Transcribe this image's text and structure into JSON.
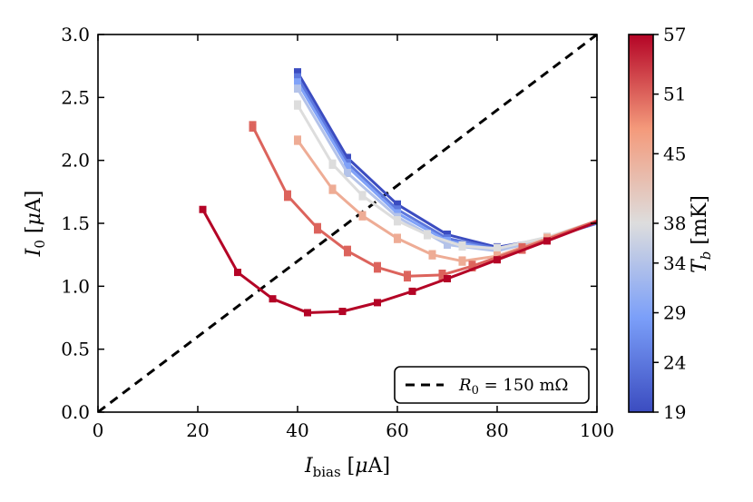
{
  "chart_data": {
    "type": "line",
    "xlabel": "I_bias [μA]",
    "ylabel": "I_0 [μA]",
    "xlim": [
      0,
      100
    ],
    "ylim": [
      0,
      3.0
    ],
    "xticks": [
      "0",
      "20",
      "40",
      "60",
      "80",
      "100"
    ],
    "yticks": [
      "0.0",
      "0.5",
      "1.0",
      "1.5",
      "2.0",
      "2.5",
      "3.0"
    ],
    "grid": false,
    "colorbar": {
      "label": "T_b [mK]",
      "range": [
        19,
        57
      ],
      "ticks": [
        "19",
        "24",
        "29",
        "34",
        "38",
        "45",
        "51",
        "57"
      ],
      "colormap": "coolwarm"
    },
    "series": [
      {
        "temp": 19,
        "x": [
          40,
          50,
          60,
          70,
          80,
          90,
          100
        ],
        "y": [
          2.7,
          2.02,
          1.65,
          1.41,
          1.31,
          1.38,
          1.5
        ],
        "err": 0.025
      },
      {
        "temp": 24,
        "x": [
          40,
          50,
          60,
          70,
          80,
          90,
          100
        ],
        "y": [
          2.66,
          1.98,
          1.61,
          1.38,
          1.3,
          1.38,
          1.5
        ],
        "err": 0.025
      },
      {
        "temp": 29,
        "x": [
          40,
          50,
          60,
          70,
          80,
          90,
          100
        ],
        "y": [
          2.62,
          1.95,
          1.58,
          1.36,
          1.29,
          1.38,
          1.51
        ],
        "err": 0.025
      },
      {
        "temp": 34,
        "x": [
          40,
          50,
          60,
          70,
          80,
          90,
          100
        ],
        "y": [
          2.57,
          1.9,
          1.55,
          1.33,
          1.28,
          1.38,
          1.51
        ],
        "err": 0.025
      },
      {
        "temp": 38,
        "x": [
          40,
          47,
          53,
          60,
          66,
          73,
          80,
          90,
          100
        ],
        "y": [
          2.44,
          1.97,
          1.72,
          1.52,
          1.41,
          1.32,
          1.3,
          1.39,
          1.52
        ],
        "err": 0.03
      },
      {
        "temp": 45,
        "x": [
          40,
          47,
          53,
          60,
          67,
          73,
          80,
          90,
          100
        ],
        "y": [
          2.16,
          1.77,
          1.56,
          1.38,
          1.25,
          1.2,
          1.24,
          1.38,
          1.52
        ],
        "err": 0.03
      },
      {
        "temp": 51,
        "x": [
          31,
          38,
          44,
          50,
          56,
          62,
          69,
          75,
          85,
          100
        ],
        "y": [
          2.27,
          1.72,
          1.46,
          1.28,
          1.15,
          1.08,
          1.09,
          1.16,
          1.3,
          1.52
        ],
        "err": 0.035
      },
      {
        "temp": 57,
        "x": [
          21,
          28,
          35,
          42,
          49,
          56,
          63,
          70,
          80,
          90,
          100
        ],
        "y": [
          1.61,
          1.11,
          0.9,
          0.79,
          0.8,
          0.87,
          0.96,
          1.06,
          1.21,
          1.36,
          1.51
        ],
        "err": 0.02
      }
    ],
    "reference_line": {
      "x": [
        0,
        100
      ],
      "y": [
        0,
        3.0
      ],
      "style": "dashed",
      "color": "#000000"
    },
    "legend": {
      "label": "R_0 = 150 mΩ",
      "placement": "lower-right"
    }
  }
}
